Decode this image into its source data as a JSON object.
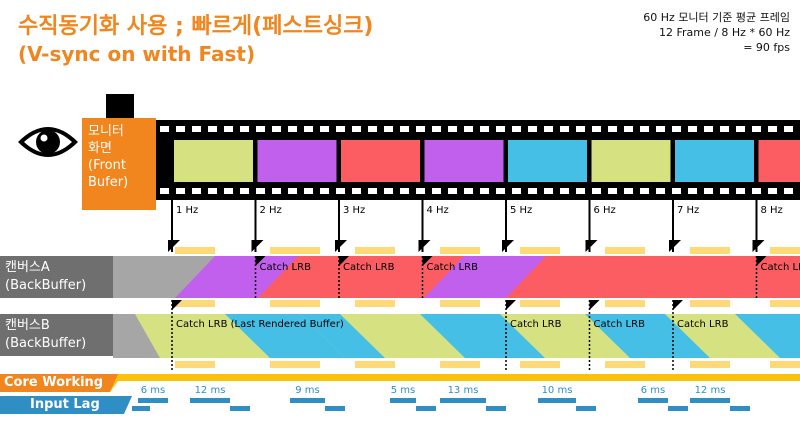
{
  "title": {
    "line1": "수직동기화 사용 ; 빠르게(페스트싱크)",
    "line2": "(V-sync on with Fast)"
  },
  "info": {
    "line1": "60 Hz 모니터 기준 평균 프레임",
    "line2": "12 Frame / 8 Hz * 60 Hz",
    "line3": "= 90 fps"
  },
  "front_buffer": {
    "line1": "모니터",
    "line2": "화면",
    "line3": "(Front",
    "line4": "Bufer)"
  },
  "canvas_a": {
    "line1": "캔버스A",
    "line2": "(BackBuffer)"
  },
  "canvas_b": {
    "line1": "캔버스B",
    "line2": "(BackBuffer)"
  },
  "core_working_label": "Core Working",
  "input_lag_label": "Input Lag",
  "colors": {
    "orange": "#f0861d",
    "green": "#d6e282",
    "purple": "#c260ee",
    "red": "#fc5d63",
    "blue": "#46bfe6",
    "gray": "#a6a6a6",
    "yellow": "#fdd978",
    "core_band": "#fbc20b",
    "lag_band": "#2f8fc5"
  },
  "film_frames": [
    "green",
    "purple",
    "red",
    "purple",
    "blue",
    "green",
    "blue",
    "red"
  ],
  "hz_labels": [
    "1 Hz",
    "2 Hz",
    "3 Hz",
    "4 Hz",
    "5 Hz",
    "6 Hz",
    "7 Hz",
    "8 Hz"
  ],
  "catch_a_labels": [
    "Catch LRB",
    "Catch LRB",
    "Catch LRB",
    "Catch LRB"
  ],
  "catch_b_labels": [
    "Catch LRB (Last Rendered Buffer)",
    "Catch LRB",
    "Catch LRB",
    "Catch LRB"
  ],
  "lag_labels": [
    "6 ms",
    "12 ms",
    "9 ms",
    "5 ms",
    "13 ms",
    "10 ms",
    "6 ms",
    "12 ms"
  ]
}
